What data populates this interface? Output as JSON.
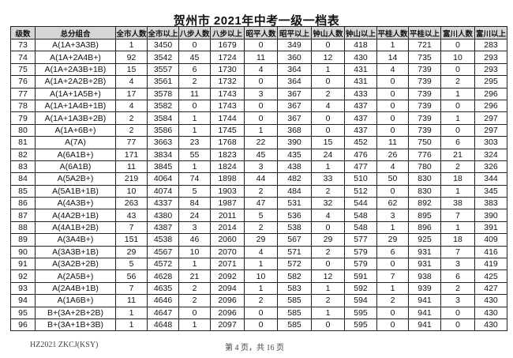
{
  "title": "贺州市 2021年中考一级一档表",
  "columns": [
    "级数",
    "总分组合",
    "全市人数",
    "全市以上",
    "八步人数",
    "八步以上",
    "昭平人数",
    "昭平以上",
    "钟山人数",
    "钟山以上",
    "平桂人数",
    "平桂以上",
    "富川人数",
    "富川以上"
  ],
  "rows": [
    [
      "73",
      "A(1A+3A3B)",
      "1",
      "3450",
      "0",
      "1679",
      "0",
      "349",
      "0",
      "418",
      "1",
      "721",
      "0",
      "283"
    ],
    [
      "74",
      "A(1A+2A4B+)",
      "92",
      "3542",
      "45",
      "1724",
      "11",
      "360",
      "12",
      "430",
      "14",
      "735",
      "10",
      "293"
    ],
    [
      "75",
      "A(1A+2A3B+1B)",
      "15",
      "3557",
      "6",
      "1730",
      "4",
      "364",
      "1",
      "431",
      "4",
      "739",
      "0",
      "293"
    ],
    [
      "76",
      "A(1A+2A2B+2B)",
      "4",
      "3561",
      "2",
      "1732",
      "0",
      "364",
      "0",
      "431",
      "0",
      "739",
      "2",
      "295"
    ],
    [
      "77",
      "A(1A+1A5B+)",
      "17",
      "3578",
      "11",
      "1743",
      "3",
      "367",
      "2",
      "433",
      "0",
      "739",
      "1",
      "296"
    ],
    [
      "78",
      "A(1A+1A4B+1B)",
      "4",
      "3582",
      "0",
      "1743",
      "0",
      "367",
      "4",
      "437",
      "0",
      "739",
      "0",
      "296"
    ],
    [
      "79",
      "A(1A+1A3B+2B)",
      "2",
      "3584",
      "1",
      "1744",
      "0",
      "367",
      "0",
      "437",
      "0",
      "739",
      "1",
      "297"
    ],
    [
      "80",
      "A(1A+6B+)",
      "2",
      "3586",
      "1",
      "1745",
      "1",
      "368",
      "0",
      "437",
      "0",
      "739",
      "0",
      "297"
    ],
    [
      "81",
      "A(7A)",
      "77",
      "3663",
      "23",
      "1768",
      "22",
      "390",
      "15",
      "452",
      "11",
      "750",
      "6",
      "303"
    ],
    [
      "82",
      "A(6A1B+)",
      "171",
      "3834",
      "55",
      "1823",
      "45",
      "435",
      "24",
      "476",
      "26",
      "776",
      "21",
      "324"
    ],
    [
      "83",
      "A(6A1B)",
      "11",
      "3845",
      "1",
      "1824",
      "3",
      "438",
      "1",
      "477",
      "4",
      "780",
      "2",
      "326"
    ],
    [
      "84",
      "A(5A2B+)",
      "219",
      "4064",
      "74",
      "1898",
      "44",
      "482",
      "33",
      "510",
      "50",
      "830",
      "18",
      "344"
    ],
    [
      "85",
      "A(5A1B+1B)",
      "10",
      "4074",
      "5",
      "1903",
      "2",
      "484",
      "2",
      "512",
      "0",
      "830",
      "1",
      "345"
    ],
    [
      "86",
      "A(4A3B+)",
      "263",
      "4337",
      "84",
      "1987",
      "47",
      "531",
      "32",
      "544",
      "62",
      "892",
      "38",
      "383"
    ],
    [
      "87",
      "A(4A2B+1B)",
      "43",
      "4380",
      "24",
      "2011",
      "5",
      "536",
      "4",
      "548",
      "3",
      "895",
      "7",
      "390"
    ],
    [
      "88",
      "A(4A1B+2B)",
      "7",
      "4387",
      "3",
      "2014",
      "2",
      "538",
      "0",
      "548",
      "1",
      "896",
      "1",
      "391"
    ],
    [
      "89",
      "A(3A4B+)",
      "151",
      "4538",
      "46",
      "2060",
      "29",
      "567",
      "29",
      "577",
      "29",
      "925",
      "18",
      "409"
    ],
    [
      "90",
      "A(3A3B+1B)",
      "29",
      "4567",
      "10",
      "2070",
      "4",
      "571",
      "2",
      "579",
      "6",
      "931",
      "7",
      "416"
    ],
    [
      "91",
      "A(3A2B+2B)",
      "5",
      "4572",
      "1",
      "2071",
      "1",
      "572",
      "0",
      "579",
      "0",
      "931",
      "3",
      "419"
    ],
    [
      "92",
      "A(2A5B+)",
      "56",
      "4628",
      "21",
      "2092",
      "10",
      "582",
      "12",
      "591",
      "7",
      "938",
      "6",
      "425"
    ],
    [
      "93",
      "A(2A4B+1B)",
      "7",
      "4635",
      "2",
      "2094",
      "1",
      "583",
      "1",
      "592",
      "1",
      "939",
      "2",
      "427"
    ],
    [
      "94",
      "A(1A6B+)",
      "11",
      "4646",
      "2",
      "2096",
      "2",
      "585",
      "2",
      "594",
      "2",
      "941",
      "3",
      "430"
    ],
    [
      "95",
      "B+(3A+2B+2B)",
      "1",
      "4647",
      "0",
      "2096",
      "0",
      "585",
      "1",
      "595",
      "0",
      "941",
      "0",
      "430"
    ],
    [
      "96",
      "B+(3A+1B+3B)",
      "1",
      "4648",
      "1",
      "2097",
      "0",
      "585",
      "0",
      "595",
      "0",
      "941",
      "0",
      "430"
    ]
  ],
  "footer": {
    "code": "HZ2021 ZKCJ(KSY)",
    "page": "第 4 页，共 16 页"
  }
}
